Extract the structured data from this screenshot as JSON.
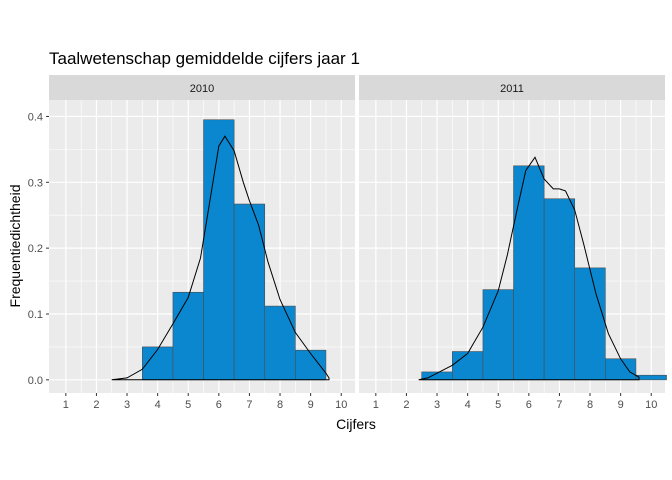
{
  "chart_data": {
    "type": "bar",
    "title": "Taalwetenschap gemiddelde cijfers jaar 1",
    "xlabel": "Cijfers",
    "ylabel": "Frequentiedichtheid",
    "xlim": [
      0.45,
      10.45
    ],
    "ylim": [
      -0.02,
      0.425
    ],
    "x_ticks": [
      1,
      2,
      3,
      4,
      5,
      6,
      7,
      8,
      9,
      10
    ],
    "y_ticks": [
      0.0,
      0.1,
      0.2,
      0.3,
      0.4
    ],
    "y_tick_labels": [
      "0.0",
      "0.1",
      "0.2",
      "0.3",
      "0.4"
    ],
    "grid": true,
    "bar_color": "#0a87cf",
    "bar_edge_color": "#4d4d4d",
    "panel_background": "#ebebeb",
    "strip_background": "#d9d9d9",
    "bin_width": 1,
    "panels": [
      {
        "strip": "2010",
        "histogram": [
          {
            "x": 4,
            "density": 0.05
          },
          {
            "x": 5,
            "density": 0.133
          },
          {
            "x": 6,
            "density": 0.395
          },
          {
            "x": 7,
            "density": 0.267
          },
          {
            "x": 8,
            "density": 0.112
          },
          {
            "x": 9,
            "density": 0.045
          }
        ],
        "density_curve": {
          "x": [
            2.5,
            3.0,
            3.5,
            4.0,
            4.5,
            5.0,
            5.4,
            5.7,
            6.0,
            6.2,
            6.5,
            6.8,
            7.0,
            7.3,
            7.6,
            8.0,
            8.5,
            9.0,
            9.5,
            9.6
          ],
          "y": [
            0.0,
            0.003,
            0.016,
            0.046,
            0.085,
            0.125,
            0.185,
            0.27,
            0.355,
            0.37,
            0.348,
            0.3,
            0.272,
            0.235,
            0.18,
            0.122,
            0.072,
            0.04,
            0.01,
            0.003
          ]
        }
      },
      {
        "strip": "2011",
        "histogram": [
          {
            "x": 3,
            "density": 0.012
          },
          {
            "x": 4,
            "density": 0.043
          },
          {
            "x": 5,
            "density": 0.137
          },
          {
            "x": 6,
            "density": 0.325
          },
          {
            "x": 7,
            "density": 0.275
          },
          {
            "x": 8,
            "density": 0.17
          },
          {
            "x": 9,
            "density": 0.032
          },
          {
            "x": 10,
            "density": 0.007
          }
        ],
        "density_curve": {
          "x": [
            2.4,
            2.7,
            3.0,
            3.5,
            4.0,
            4.5,
            5.0,
            5.3,
            5.6,
            5.9,
            6.2,
            6.5,
            6.8,
            7.0,
            7.2,
            7.5,
            7.8,
            8.2,
            8.6,
            9.0,
            9.3,
            9.6
          ],
          "y": [
            0.0,
            0.003,
            0.01,
            0.022,
            0.04,
            0.08,
            0.135,
            0.19,
            0.255,
            0.318,
            0.338,
            0.305,
            0.29,
            0.29,
            0.287,
            0.258,
            0.205,
            0.13,
            0.07,
            0.032,
            0.012,
            0.004
          ]
        }
      }
    ]
  }
}
